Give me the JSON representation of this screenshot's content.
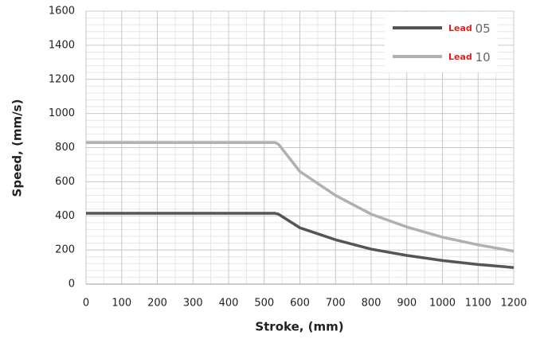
{
  "chart_data": {
    "type": "line",
    "x_label": "Stroke, (mm)",
    "y_label": "Speed, (mm/s)",
    "x": [
      0,
      530,
      540,
      600,
      700,
      800,
      900,
      1000,
      1100,
      1200
    ],
    "series": [
      {
        "name": "Lead 05",
        "color": "#555555",
        "values": [
          415,
          415,
          410,
          330,
          260,
          205,
          168,
          138,
          115,
          97
        ]
      },
      {
        "name": "Lead 10",
        "color": "#b0b0b0",
        "values": [
          830,
          830,
          820,
          660,
          520,
          410,
          335,
          275,
          230,
          193
        ]
      }
    ],
    "xlim": [
      0,
      1200
    ],
    "ylim": [
      0,
      1600
    ],
    "xticks": [
      0,
      100,
      200,
      300,
      400,
      500,
      600,
      700,
      800,
      900,
      1000,
      1100,
      1200
    ],
    "yticks": [
      0,
      200,
      400,
      600,
      800,
      1000,
      1200,
      1400,
      1600
    ],
    "grid": true,
    "minor_grid": {
      "x": 2,
      "y": 5
    },
    "legend": "upper right"
  }
}
